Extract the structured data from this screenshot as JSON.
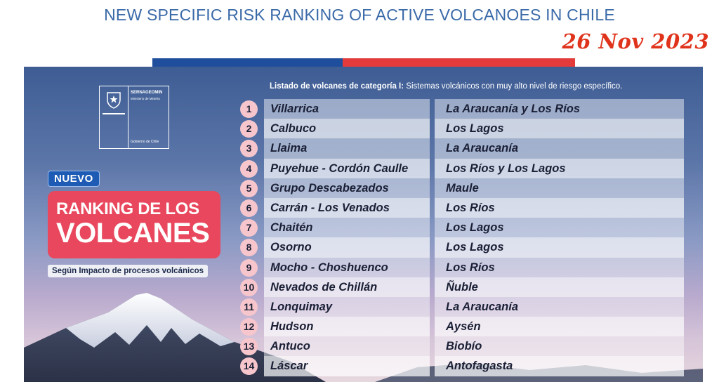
{
  "headline": "NEW SPECIFIC RISK RANKING OF ACTIVE VOLCANOES IN CHILE",
  "date_stamp": "26 Nov 2023",
  "colors": {
    "headline": "#3b6aa8",
    "date": "#e0331c",
    "flag_blue": "#1f4f9c",
    "flag_red": "#e33b3b",
    "card": "#e8475d",
    "badge": "#1d5bb5"
  },
  "poster": {
    "logo": {
      "agency": "SERNAGEOMIN",
      "ministry": "Ministerio de Minería",
      "government": "Gobierno de Chile",
      "icon": "chile-crest-icon"
    },
    "badge": "NUEVO",
    "title_line1": "RANKING DE LOS",
    "title_line2": "VOLCANES",
    "subtitle": "Según Impacto de procesos volcánicos",
    "list_header_bold": "Listado de volcanes de categoría I:",
    "list_header_rest": " Sistemas volcánicos con muy alto nivel de riesgo específico.",
    "rows": [
      {
        "rank": "1",
        "name": "Villarrica",
        "region": "La Araucanía y Los Ríos"
      },
      {
        "rank": "2",
        "name": "Calbuco",
        "region": "Los Lagos"
      },
      {
        "rank": "3",
        "name": "Llaima",
        "region": "La Araucanía"
      },
      {
        "rank": "4",
        "name": "Puyehue - Cordón Caulle",
        "region": "Los Ríos y Los Lagos"
      },
      {
        "rank": "5",
        "name": "Grupo Descabezados",
        "region": "Maule"
      },
      {
        "rank": "6",
        "name": "Carrán - Los Venados",
        "region": "Los Ríos"
      },
      {
        "rank": "7",
        "name": "Chaitén",
        "region": "Los Lagos"
      },
      {
        "rank": "8",
        "name": "Osorno",
        "region": "Los Lagos"
      },
      {
        "rank": "9",
        "name": "Mocho - Choshuenco",
        "region": "Los Ríos"
      },
      {
        "rank": "10",
        "name": "Nevados de Chillán",
        "region": "Ñuble"
      },
      {
        "rank": "11",
        "name": "Lonquimay",
        "region": "La Araucanía"
      },
      {
        "rank": "12",
        "name": "Hudson",
        "region": "Aysén"
      },
      {
        "rank": "13",
        "name": "Antuco",
        "region": "Biobío"
      },
      {
        "rank": "14",
        "name": "Láscar",
        "region": "Antofagasta"
      }
    ]
  }
}
